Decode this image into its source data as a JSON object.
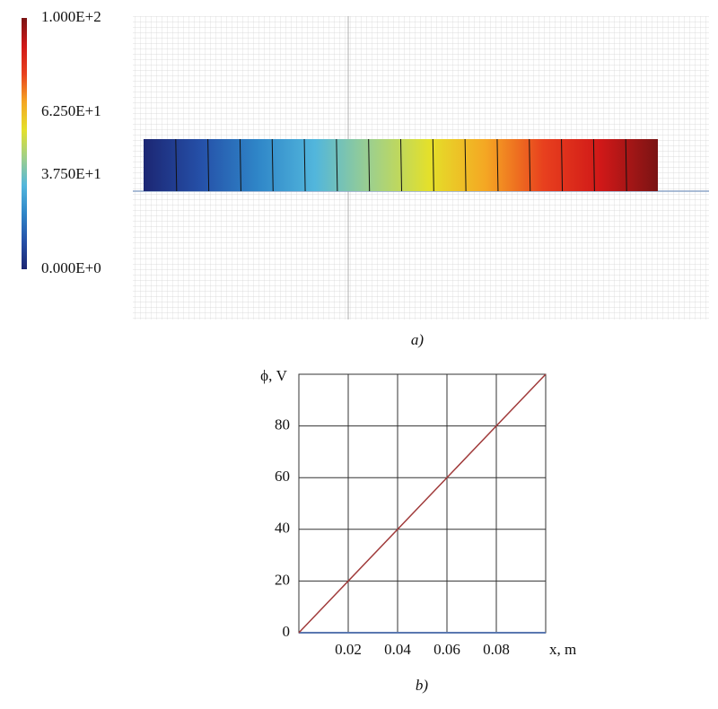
{
  "chart_data": [
    {
      "type": "field",
      "zlim": [
        0,
        100
      ],
      "zticks": [
        {
          "value": 100,
          "label": "1.000E+2"
        },
        {
          "value": 62.5,
          "label": "6.250E+1"
        },
        {
          "value": 37.5,
          "label": "3.750E+1"
        },
        {
          "value": 0,
          "label": "0.000E+0"
        }
      ],
      "colormap": [
        "#1c2673",
        "#2550a8",
        "#2f86c8",
        "#52b6dc",
        "#9fd08a",
        "#e4e02a",
        "#f5a623",
        "#e8401e",
        "#d01818",
        "#7a1414"
      ],
      "levels": [
        6.25,
        12.5,
        18.75,
        25,
        31.25,
        37.5,
        43.75,
        50,
        56.25,
        62.5,
        68.75,
        75,
        81.25,
        87.5,
        93.75
      ],
      "caption": "a)"
    },
    {
      "type": "line",
      "ylabel": "ϕ, V",
      "xlabel": "x, m",
      "x": [
        0,
        0.1
      ],
      "series": [
        {
          "color": "#a03a3a",
          "values": [
            0,
            100
          ]
        }
      ],
      "xlim": [
        0,
        0.1
      ],
      "ylim": [
        0,
        100
      ],
      "xticks": [
        0.02,
        0.04,
        0.06,
        0.08
      ],
      "yticks": [
        0,
        20,
        40,
        60,
        80
      ],
      "grid": true,
      "caption": "b)"
    }
  ]
}
